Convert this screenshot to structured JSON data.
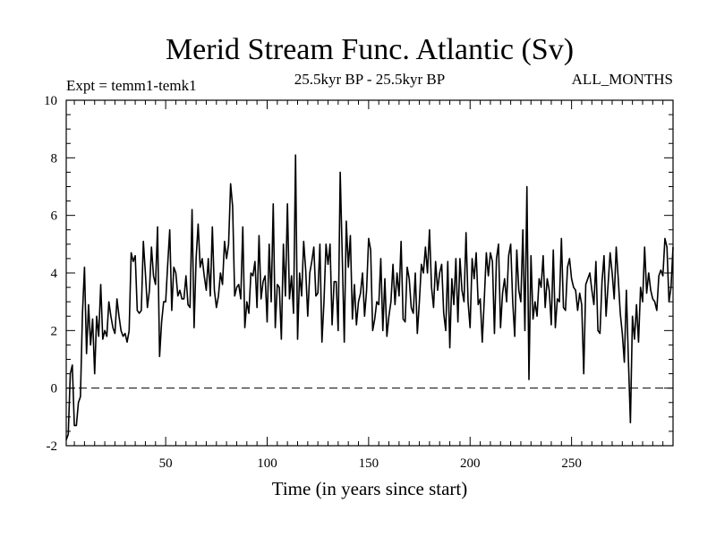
{
  "chart_data": {
    "type": "line",
    "title": "Merid Stream Func. Atlantic (Sv)",
    "subtitle_left": "Expt = temm1-temk1",
    "subtitle_center": "25.5kyr BP - 25.5kyr BP",
    "subtitle_right": "ALL_MONTHS",
    "xlabel": "Time (in years since start)",
    "ylabel": "",
    "xlim": [
      1,
      300
    ],
    "ylim": [
      -2,
      10
    ],
    "xticks": [
      50,
      100,
      150,
      200,
      250
    ],
    "yticks": [
      -2,
      0,
      2,
      4,
      6,
      8,
      10
    ],
    "reference_line": {
      "y": 0,
      "style": "dashed"
    },
    "series": [
      {
        "name": "Merid Stream Func. Atlantic",
        "x_start": 1,
        "x_step": 1,
        "values": [
          -1.8,
          -1.6,
          0.5,
          0.8,
          -1.3,
          -1.3,
          -0.5,
          -0.3,
          2.6,
          4.2,
          1.2,
          2.9,
          1.5,
          2.4,
          0.5,
          2.5,
          1.8,
          3.6,
          1.7,
          2.0,
          1.8,
          3.0,
          2.5,
          2.1,
          1.9,
          3.1,
          2.5,
          2.0,
          1.8,
          1.9,
          1.6,
          2.0,
          4.7,
          4.4,
          4.6,
          2.7,
          2.6,
          2.7,
          5.1,
          4.0,
          2.8,
          3.4,
          4.9,
          3.9,
          3.6,
          5.6,
          1.1,
          2.3,
          3.0,
          3.0,
          4.3,
          5.5,
          2.7,
          4.2,
          4.0,
          3.2,
          3.4,
          3.1,
          3.1,
          3.9,
          2.9,
          2.8,
          6.2,
          2.1,
          4.5,
          5.7,
          4.2,
          4.5,
          3.9,
          3.4,
          4.5,
          3.2,
          5.6,
          3.4,
          2.8,
          3.2,
          4.0,
          3.6,
          5.1,
          4.5,
          5.0,
          7.1,
          6.3,
          3.2,
          3.5,
          3.6,
          3.1,
          5.6,
          2.1,
          3.0,
          2.6,
          4.0,
          3.9,
          4.4,
          2.8,
          5.3,
          3.1,
          3.7,
          3.9,
          2.3,
          5.0,
          3.0,
          6.4,
          2.1,
          3.6,
          3.5,
          1.7,
          5.0,
          3.2,
          6.4,
          3.1,
          3.9,
          2.6,
          8.1,
          1.7,
          4.0,
          3.2,
          5.1,
          4.1,
          2.5,
          4.0,
          4.4,
          4.9,
          3.2,
          3.3,
          5.0,
          1.6,
          3.0,
          5.0,
          4.3,
          5.0,
          2.2,
          3.7,
          3.7,
          2.0,
          7.5,
          4.6,
          1.6,
          5.8,
          4.2,
          5.3,
          2.4,
          3.6,
          2.2,
          3.0,
          3.3,
          4.0,
          2.5,
          3.4,
          5.2,
          4.8,
          2.0,
          2.4,
          3.0,
          2.9,
          4.5,
          2.0,
          3.8,
          1.8,
          2.5,
          3.0,
          4.3,
          2.9,
          4.0,
          3.2,
          5.1,
          2.4,
          2.3,
          4.2,
          3.8,
          2.8,
          2.6,
          4.0,
          1.9,
          3.0,
          4.3,
          4.0,
          4.9,
          4.0,
          5.5,
          3.5,
          2.8,
          4.4,
          3.4,
          4.0,
          4.3,
          2.6,
          2.0,
          4.4,
          1.4,
          3.8,
          2.9,
          4.5,
          2.3,
          4.5,
          3.4,
          3.0,
          5.4,
          3.0,
          2.1,
          4.5,
          3.8,
          4.7,
          2.9,
          3.1,
          1.6,
          3.1,
          4.7,
          3.9,
          4.7,
          4.4,
          1.9,
          4.5,
          5.0,
          2.1,
          3.3,
          3.8,
          3.0,
          4.6,
          5.0,
          3.0,
          1.8,
          4.8,
          3.4,
          3.0,
          5.5,
          2.0,
          7.0,
          0.3,
          4.6,
          2.4,
          3.0,
          2.5,
          3.8,
          3.5,
          4.6,
          2.8,
          3.8,
          3.4,
          2.2,
          4.8,
          2.1,
          3.1,
          3.0,
          5.2,
          2.8,
          2.7,
          4.2,
          4.5,
          3.8,
          3.5,
          3.4,
          2.7,
          3.3,
          2.9,
          0.5,
          3.6,
          3.8,
          4.0,
          3.4,
          2.9,
          4.4,
          2.0,
          1.9,
          3.7,
          4.6,
          2.5,
          3.6,
          4.7,
          4.0,
          3.1,
          4.9,
          3.8,
          2.6,
          1.9,
          0.9,
          3.4,
          1.0,
          -1.2,
          2.5,
          1.7,
          2.9,
          1.6,
          3.5,
          3.0,
          4.9,
          3.3,
          4.0,
          3.4,
          3.1,
          3.0,
          2.7,
          3.9,
          4.1,
          3.9,
          5.2,
          4.9,
          3.0,
          3.5,
          4.9
        ]
      }
    ]
  }
}
